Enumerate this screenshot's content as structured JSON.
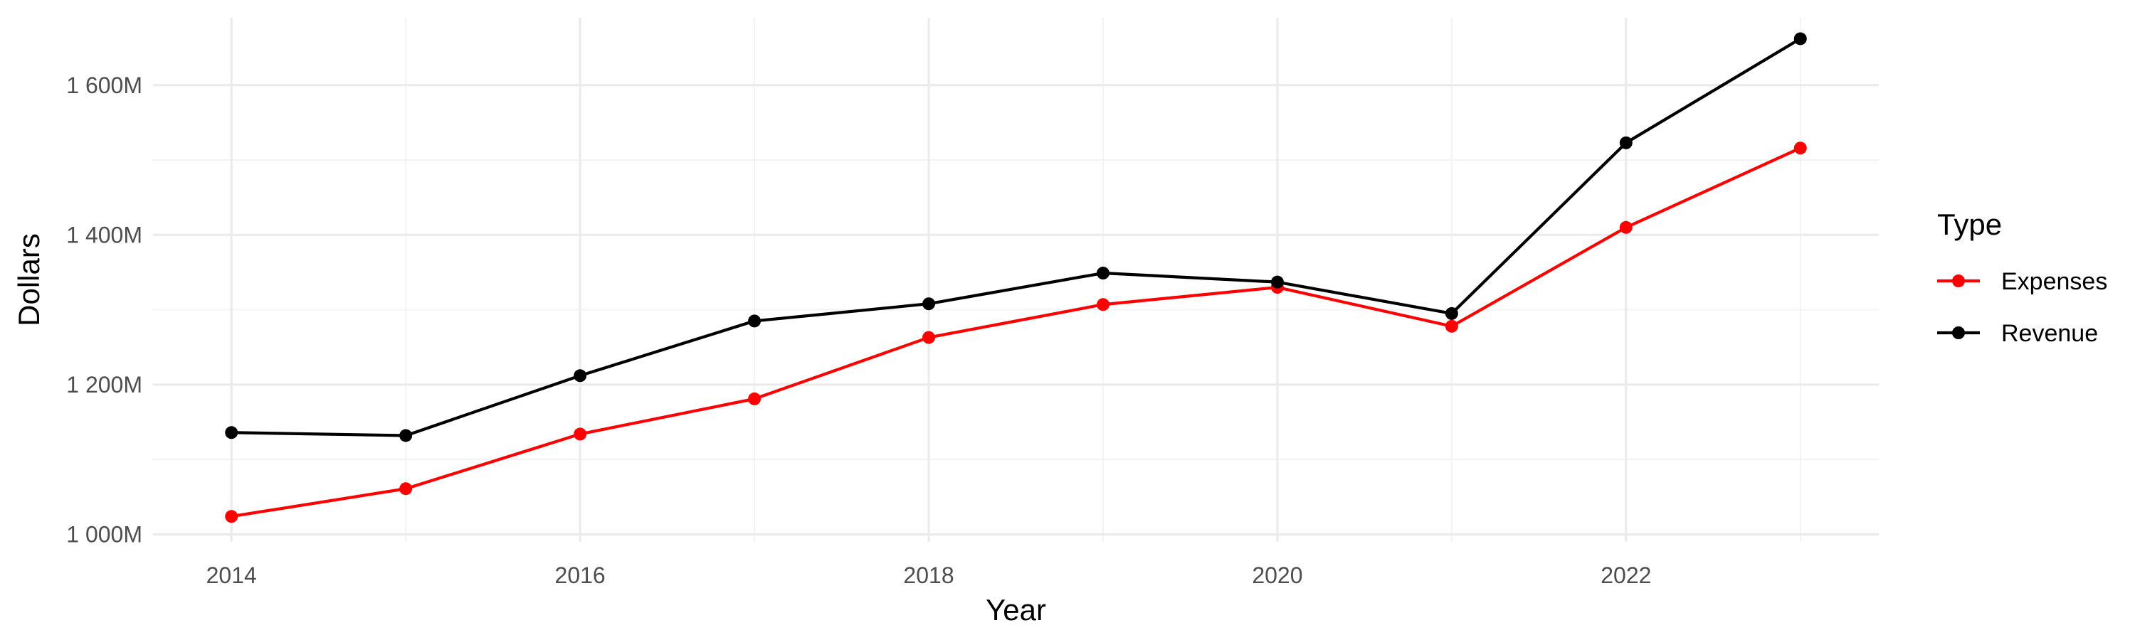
{
  "chart_data": {
    "type": "line",
    "x": [
      2014,
      2015,
      2016,
      2017,
      2018,
      2019,
      2020,
      2021,
      2022,
      2023
    ],
    "series": [
      {
        "name": "Expenses",
        "color": "#ff0000",
        "values": [
          1024,
          1061,
          1134,
          1181,
          1263,
          1307,
          1330,
          1278,
          1410,
          1516
        ]
      },
      {
        "name": "Revenue",
        "color": "#000000",
        "values": [
          1136,
          1132,
          1212,
          1285,
          1308,
          1349,
          1337,
          1295,
          1523,
          1662
        ]
      }
    ],
    "title": "",
    "xlabel": "Year",
    "ylabel": "Dollars",
    "xlim": [
      2013.55,
      2023.45
    ],
    "ylim": [
      990,
      1690
    ],
    "x_ticks": [
      2014,
      2016,
      2018,
      2020,
      2022
    ],
    "x_tick_labels": [
      "2014",
      "2016",
      "2018",
      "2020",
      "2022"
    ],
    "y_ticks": [
      1000,
      1200,
      1400,
      1600
    ],
    "y_tick_labels": [
      "1 000M",
      "1 200M",
      "1 400M",
      "1 600M"
    ],
    "legend_title": "Type",
    "legend_position": "right",
    "grid": true
  }
}
